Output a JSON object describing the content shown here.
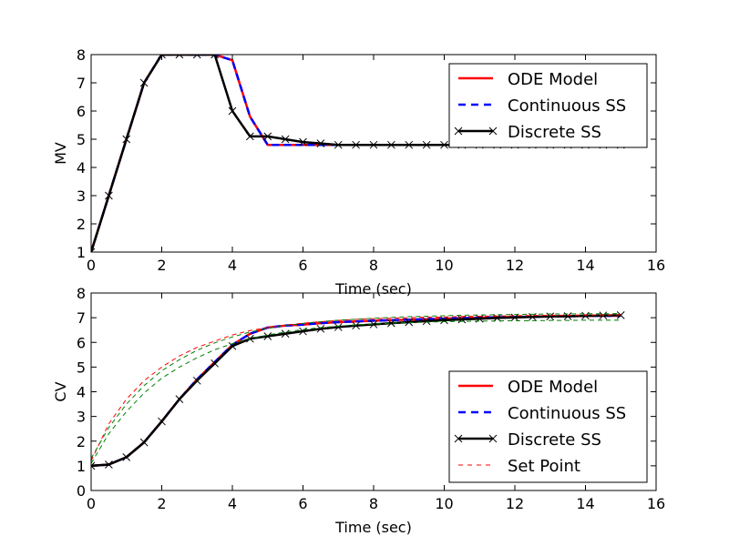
{
  "chart_data": [
    {
      "type": "line",
      "xlabel": "Time (sec)",
      "ylabel": "MV",
      "xlim": [
        0,
        16
      ],
      "ylim": [
        1,
        8
      ],
      "xticks": [
        0,
        2,
        4,
        6,
        8,
        10,
        12,
        14,
        16
      ],
      "yticks": [
        1,
        2,
        3,
        4,
        5,
        6,
        7,
        8
      ],
      "legend_location": "top-right",
      "series": [
        {
          "name": "ODE Model",
          "color": "#ff0000",
          "style": "solid",
          "x": [
            0,
            0.5,
            1,
            1.5,
            2,
            2.5,
            3,
            3.5,
            4,
            4.5,
            5,
            5.5,
            6,
            6.5,
            7,
            7.5,
            8,
            8.5,
            9,
            9.5,
            10,
            10.5,
            11,
            11.5,
            12,
            12.5,
            13,
            13.5,
            14,
            14.5,
            15
          ],
          "y": [
            1,
            3,
            5,
            7,
            8,
            8,
            8,
            8,
            7.8,
            5.8,
            4.8,
            4.8,
            4.8,
            4.8,
            4.8,
            4.8,
            4.8,
            4.8,
            4.8,
            4.8,
            4.8,
            4.8,
            4.8,
            4.8,
            4.8,
            4.8,
            4.8,
            4.8,
            4.8,
            4.8,
            4.8
          ]
        },
        {
          "name": "Continuous SS",
          "color": "#0000ff",
          "style": "dashed",
          "x": [
            0,
            0.5,
            1,
            1.5,
            2,
            2.5,
            3,
            3.5,
            4,
            4.5,
            5,
            5.5,
            6,
            6.5,
            7,
            7.5,
            8,
            8.5,
            9,
            9.5,
            10,
            10.5,
            11,
            11.5,
            12,
            12.5,
            13,
            13.5,
            14,
            14.5,
            15
          ],
          "y": [
            1,
            3,
            5,
            7,
            8,
            8,
            8,
            8,
            7.8,
            5.8,
            4.8,
            4.8,
            4.8,
            4.8,
            4.8,
            4.8,
            4.8,
            4.8,
            4.8,
            4.8,
            4.8,
            4.8,
            4.8,
            4.8,
            4.8,
            4.8,
            4.8,
            4.8,
            4.8,
            4.8,
            4.8
          ]
        },
        {
          "name": "Discrete SS",
          "color": "#000000",
          "style": "solid-x",
          "x": [
            0,
            0.5,
            1,
            1.5,
            2,
            2.5,
            3,
            3.5,
            4,
            4.5,
            5,
            5.5,
            6,
            6.5,
            7,
            7.5,
            8,
            8.5,
            9,
            9.5,
            10,
            10.5,
            11,
            11.5,
            12,
            12.5,
            13,
            13.5,
            14,
            14.5,
            15
          ],
          "y": [
            1,
            3,
            5,
            7,
            8,
            8,
            8,
            8,
            6,
            5.1,
            5.1,
            5.0,
            4.9,
            4.85,
            4.8,
            4.8,
            4.8,
            4.8,
            4.8,
            4.8,
            4.8,
            4.8,
            4.8,
            4.8,
            4.8,
            4.8,
            4.8,
            4.8,
            4.8,
            4.8,
            4.8
          ]
        }
      ]
    },
    {
      "type": "line",
      "xlabel": "Time (sec)",
      "ylabel": "CV",
      "xlim": [
        0,
        16
      ],
      "ylim": [
        0,
        8
      ],
      "xticks": [
        0,
        2,
        4,
        6,
        8,
        10,
        12,
        14,
        16
      ],
      "yticks": [
        0,
        1,
        2,
        3,
        4,
        5,
        6,
        7,
        8
      ],
      "legend_location": "lower-right",
      "series": [
        {
          "name": "ODE Model",
          "color": "#ff0000",
          "style": "solid",
          "x": [
            0,
            0.5,
            1,
            1.5,
            2,
            2.5,
            3,
            3.5,
            4,
            4.5,
            5,
            5.5,
            6,
            6.5,
            7,
            7.5,
            8,
            8.5,
            9,
            9.5,
            10,
            10.5,
            11,
            11.5,
            12,
            12.5,
            13,
            13.5,
            14,
            14.5,
            15
          ],
          "y": [
            1,
            1.05,
            1.35,
            1.95,
            2.8,
            3.7,
            4.5,
            5.2,
            5.9,
            6.35,
            6.6,
            6.68,
            6.72,
            6.78,
            6.82,
            6.85,
            6.88,
            6.9,
            6.92,
            6.94,
            6.96,
            6.98,
            7.0,
            7.02,
            7.03,
            7.04,
            7.05,
            7.06,
            7.07,
            7.08,
            7.08
          ]
        },
        {
          "name": "Continuous SS",
          "color": "#0000ff",
          "style": "dashed",
          "x": [
            0,
            0.5,
            1,
            1.5,
            2,
            2.5,
            3,
            3.5,
            4,
            4.5,
            5,
            5.5,
            6,
            6.5,
            7,
            7.5,
            8,
            8.5,
            9,
            9.5,
            10,
            10.5,
            11,
            11.5,
            12,
            12.5,
            13,
            13.5,
            14,
            14.5,
            15
          ],
          "y": [
            1,
            1.05,
            1.35,
            1.95,
            2.8,
            3.7,
            4.5,
            5.2,
            5.9,
            6.35,
            6.6,
            6.68,
            6.72,
            6.78,
            6.82,
            6.85,
            6.88,
            6.9,
            6.92,
            6.94,
            6.96,
            6.98,
            7.0,
            7.02,
            7.03,
            7.04,
            7.05,
            7.06,
            7.07,
            7.08,
            7.08
          ]
        },
        {
          "name": "Discrete SS",
          "color": "#000000",
          "style": "solid-x",
          "x": [
            0,
            0.5,
            1,
            1.5,
            2,
            2.5,
            3,
            3.5,
            4,
            4.5,
            5,
            5.5,
            6,
            6.5,
            7,
            7.5,
            8,
            8.5,
            9,
            9.5,
            10,
            10.5,
            11,
            11.5,
            12,
            12.5,
            13,
            13.5,
            14,
            14.5,
            15
          ],
          "y": [
            1,
            1.05,
            1.35,
            1.95,
            2.8,
            3.7,
            4.45,
            5.15,
            5.85,
            6.15,
            6.25,
            6.35,
            6.45,
            6.55,
            6.62,
            6.68,
            6.73,
            6.78,
            6.82,
            6.86,
            6.9,
            6.93,
            6.96,
            6.99,
            7.01,
            7.03,
            7.05,
            7.06,
            7.08,
            7.09,
            7.1
          ]
        },
        {
          "name": "Set Point",
          "color": "#ff0000",
          "style": "dashed-thin",
          "x": [
            0,
            0.5,
            1,
            1.5,
            2,
            2.5,
            3,
            3.5,
            4,
            4.5,
            5,
            5.5,
            6,
            6.5,
            7,
            7.5,
            8,
            8.5,
            9,
            9.5,
            10,
            10.5,
            11,
            11.5,
            12,
            12.5,
            13,
            13.5,
            14,
            14.5,
            15
          ],
          "y": [
            1.2,
            2.7,
            3.7,
            4.45,
            5.0,
            5.45,
            5.8,
            6.05,
            6.3,
            6.48,
            6.6,
            6.7,
            6.78,
            6.84,
            6.89,
            6.93,
            6.96,
            6.98,
            7.0,
            7.02,
            7.03,
            7.05,
            7.06,
            7.07,
            7.08,
            7.09,
            7.1,
            7.1,
            7.11,
            7.11,
            7.12
          ]
        },
        {
          "name": "Set Point upper (unlabeled)",
          "color": "#007f00",
          "style": "dashed-thin",
          "x": [
            0,
            0.5,
            1,
            1.5,
            2,
            2.5,
            3,
            3.5,
            4,
            4.5,
            5,
            5.5,
            6,
            6.5,
            7,
            7.5,
            8,
            8.5,
            9,
            9.5,
            10,
            10.5,
            11,
            11.5,
            12,
            12.5,
            13,
            13.5,
            14,
            14.5,
            15
          ],
          "y": [
            1.3,
            2.55,
            3.5,
            4.25,
            4.85,
            5.3,
            5.68,
            5.98,
            6.22,
            6.42,
            6.57,
            6.68,
            6.77,
            6.84,
            6.9,
            6.94,
            6.98,
            7.01,
            7.04,
            7.06,
            7.08,
            7.1,
            7.11,
            7.12,
            7.13,
            7.14,
            7.15,
            7.15,
            7.16,
            7.16,
            7.17
          ]
        },
        {
          "name": "Set Point lower (unlabeled)",
          "color": "#007f00",
          "style": "dashed-thin",
          "x": [
            0,
            0.5,
            1,
            1.5,
            2,
            2.5,
            3,
            3.5,
            4,
            4.5,
            5,
            5.5,
            6,
            6.5,
            7,
            7.5,
            8,
            8.5,
            9,
            9.5,
            10,
            10.5,
            11,
            11.5,
            12,
            12.5,
            13,
            13.5,
            14,
            14.5,
            15
          ],
          "y": [
            1.1,
            2.3,
            3.2,
            3.95,
            4.55,
            5.0,
            5.38,
            5.7,
            5.95,
            6.15,
            6.3,
            6.42,
            6.52,
            6.6,
            6.66,
            6.71,
            6.75,
            6.78,
            6.8,
            6.82,
            6.84,
            6.85,
            6.86,
            6.87,
            6.88,
            6.88,
            6.89,
            6.89,
            6.9,
            6.9,
            6.9
          ]
        }
      ]
    }
  ]
}
